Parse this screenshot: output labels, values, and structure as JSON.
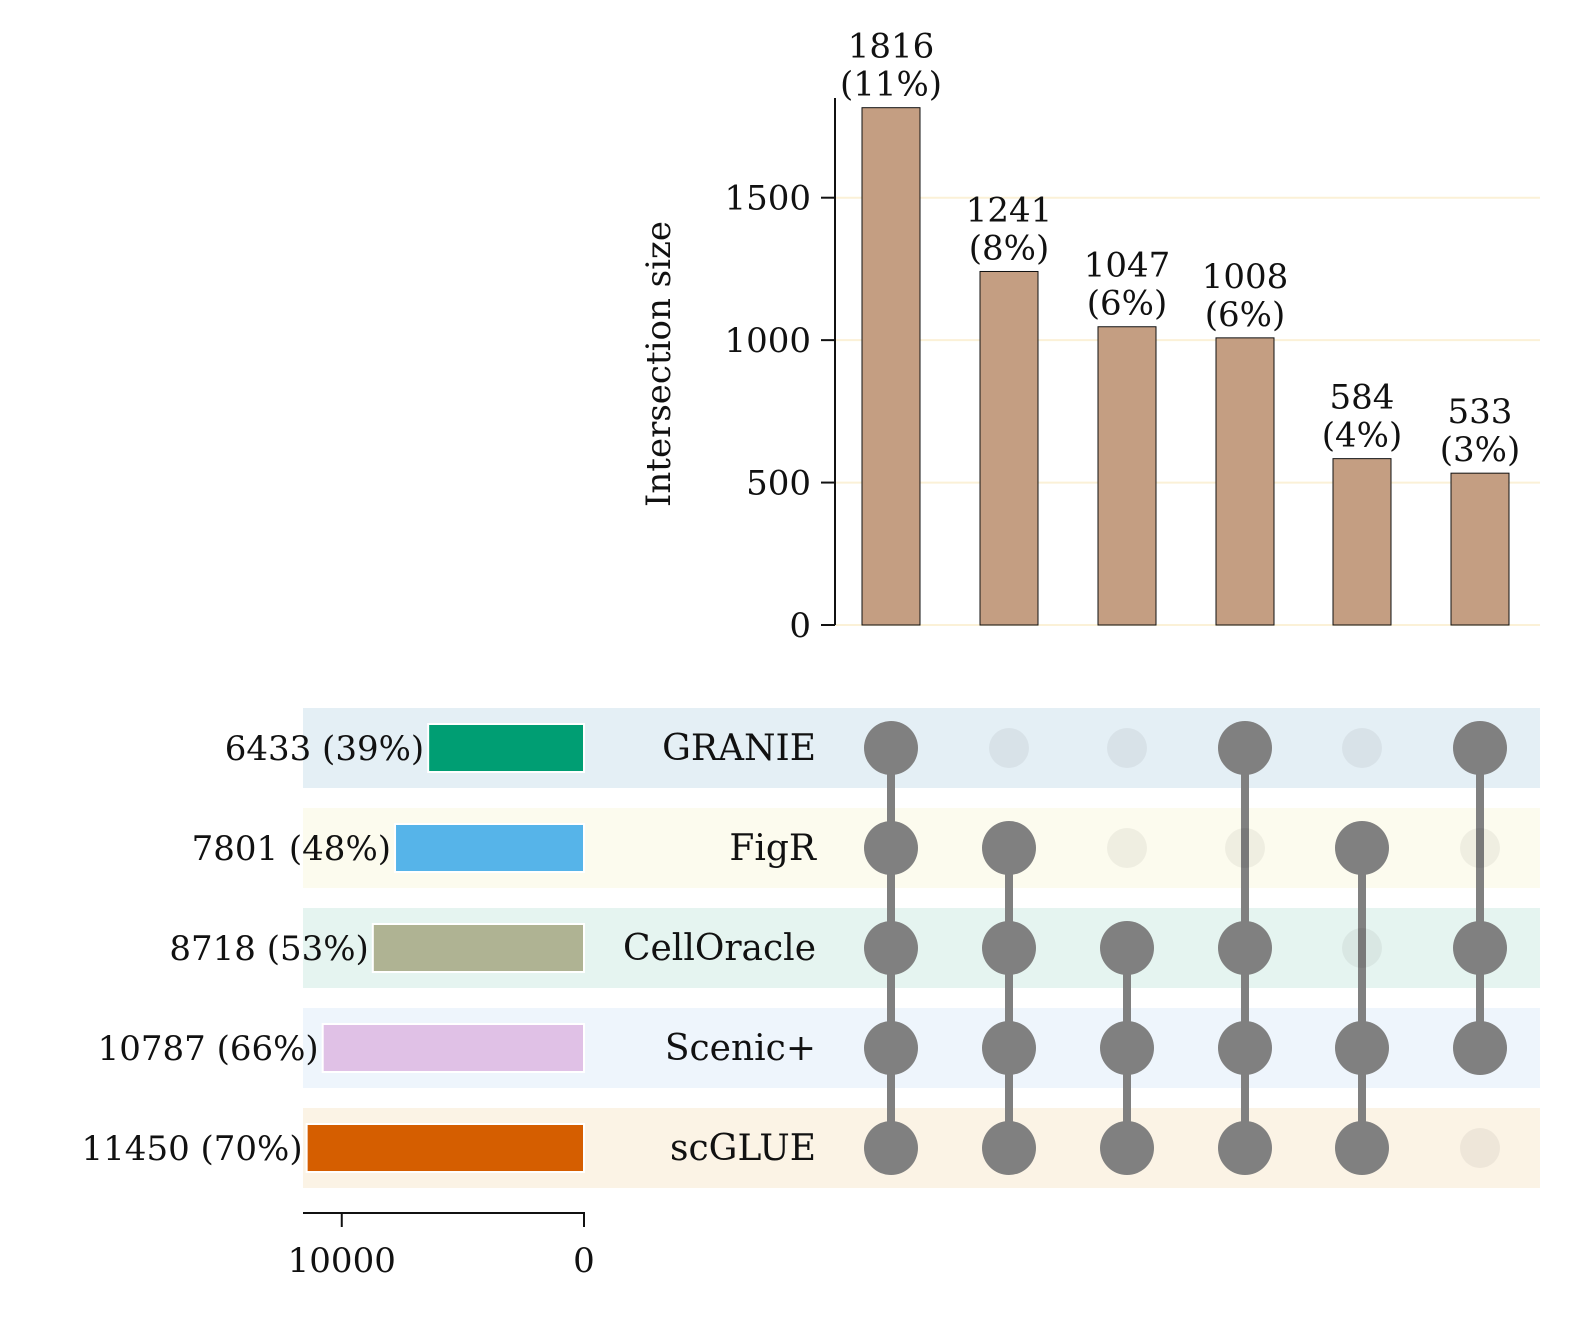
{
  "chart_data": {
    "type": "upset",
    "intersection_axis": {
      "ylabel": "Intersection size",
      "ylim": [
        0,
        1850
      ],
      "yticks": [
        0,
        500,
        1000,
        1500
      ],
      "grid": true
    },
    "intersections": [
      {
        "value": 1816,
        "label": "1816",
        "pct": "(11%)",
        "members": [
          "GRANIE",
          "FigR",
          "CellOracle",
          "Scenic+",
          "scGLUE"
        ]
      },
      {
        "value": 1241,
        "label": "1241",
        "pct": "(8%)",
        "members": [
          "FigR",
          "CellOracle",
          "Scenic+",
          "scGLUE"
        ]
      },
      {
        "value": 1047,
        "label": "1047",
        "pct": "(6%)",
        "members": [
          "CellOracle",
          "Scenic+",
          "scGLUE"
        ]
      },
      {
        "value": 1008,
        "label": "1008",
        "pct": "(6%)",
        "members": [
          "GRANIE",
          "CellOracle",
          "Scenic+",
          "scGLUE"
        ]
      },
      {
        "value": 584,
        "label": "584",
        "pct": "(4%)",
        "members": [
          "FigR",
          "Scenic+",
          "scGLUE"
        ]
      },
      {
        "value": 533,
        "label": "533",
        "pct": "(3%)",
        "members": [
          "GRANIE",
          "CellOracle",
          "Scenic+"
        ]
      }
    ],
    "sets": [
      {
        "name": "GRANIE",
        "size": 6433,
        "label": "6433 (39%)",
        "color": "#009e73",
        "band": "#e4eff5"
      },
      {
        "name": "FigR",
        "size": 7801,
        "label": "7801 (48%)",
        "color": "#56b4e9",
        "band": "#fcfbee"
      },
      {
        "name": "CellOracle",
        "size": 8718,
        "label": "8718 (53%)",
        "color": "#afb393",
        "band": "#e5f4f0"
      },
      {
        "name": "Scenic+",
        "size": 10787,
        "label": "10787 (66%)",
        "color": "#e0c1e6",
        "band": "#eef5fc"
      },
      {
        "name": "scGLUE",
        "size": 11450,
        "label": "11450 (70%)",
        "color": "#d55e00",
        "band": "#fbf3e5"
      }
    ],
    "set_axis": {
      "xticks": [
        10000,
        0
      ],
      "xtick_labels": [
        "10000",
        "0"
      ],
      "xlim": [
        11600,
        0
      ]
    },
    "colors": {
      "bar": "#c49e82",
      "dot_active": "#808080",
      "grid": "#fbf1d7"
    }
  }
}
